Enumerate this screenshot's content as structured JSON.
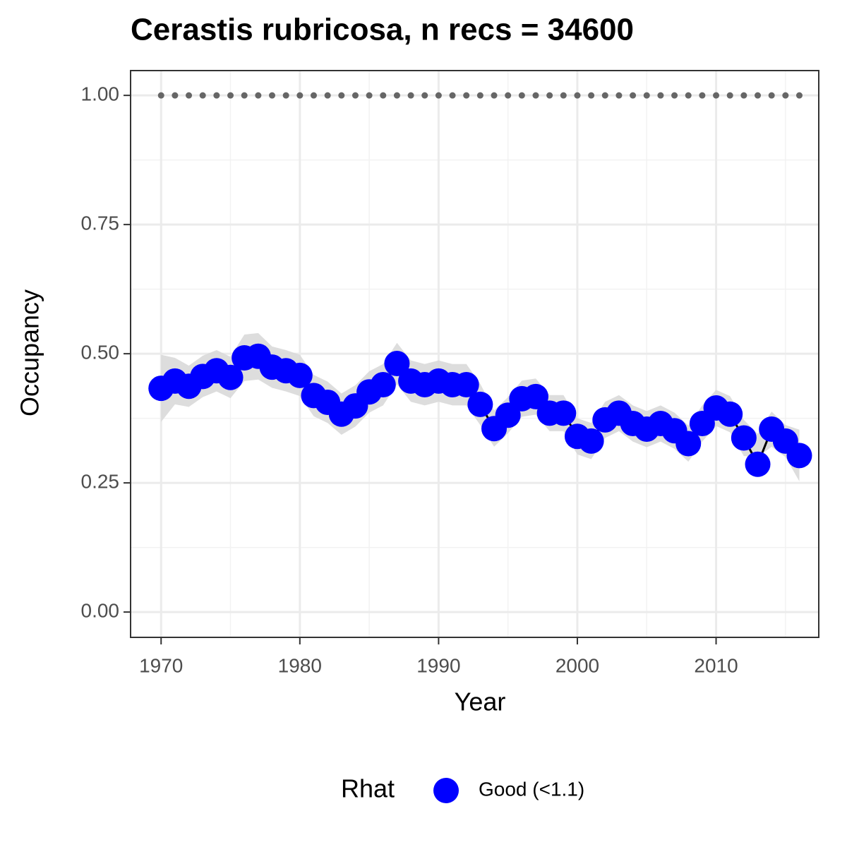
{
  "chart_data": {
    "type": "line",
    "title": "Cerastis rubricosa, n recs = 34600",
    "xlabel": "Year",
    "ylabel": "Occupancy",
    "legend_title": "Rhat",
    "legend": "bottom",
    "x": [
      1970,
      1971,
      1972,
      1973,
      1974,
      1975,
      1976,
      1977,
      1978,
      1979,
      1980,
      1981,
      1982,
      1983,
      1984,
      1985,
      1986,
      1987,
      1988,
      1989,
      1990,
      1991,
      1992,
      1993,
      1994,
      1995,
      1996,
      1997,
      1998,
      1999,
      2000,
      2001,
      2002,
      2003,
      2004,
      2005,
      2006,
      2007,
      2008,
      2009,
      2010,
      2011,
      2012,
      2013,
      2014,
      2015,
      2016
    ],
    "series": [
      {
        "name": "Good (<1.1)",
        "color": "#0000ff",
        "line_color": "#000000",
        "values": [
          0.433,
          0.447,
          0.437,
          0.456,
          0.467,
          0.454,
          0.492,
          0.495,
          0.474,
          0.467,
          0.458,
          0.419,
          0.406,
          0.383,
          0.399,
          0.426,
          0.44,
          0.481,
          0.447,
          0.44,
          0.447,
          0.44,
          0.44,
          0.402,
          0.355,
          0.381,
          0.413,
          0.417,
          0.385,
          0.385,
          0.34,
          0.331,
          0.372,
          0.385,
          0.365,
          0.354,
          0.365,
          0.351,
          0.326,
          0.365,
          0.395,
          0.383,
          0.337,
          0.286,
          0.354,
          0.331,
          0.303
        ],
        "lower": [
          0.368,
          0.402,
          0.397,
          0.416,
          0.427,
          0.414,
          0.447,
          0.45,
          0.434,
          0.427,
          0.418,
          0.379,
          0.366,
          0.343,
          0.359,
          0.386,
          0.4,
          0.441,
          0.407,
          0.4,
          0.407,
          0.4,
          0.4,
          0.362,
          0.32,
          0.346,
          0.378,
          0.382,
          0.35,
          0.35,
          0.305,
          0.296,
          0.337,
          0.35,
          0.33,
          0.319,
          0.33,
          0.316,
          0.291,
          0.33,
          0.36,
          0.348,
          0.302,
          0.3,
          0.32,
          0.3,
          0.253
        ],
        "upper": [
          0.498,
          0.492,
          0.477,
          0.496,
          0.507,
          0.494,
          0.537,
          0.54,
          0.514,
          0.507,
          0.498,
          0.459,
          0.446,
          0.423,
          0.439,
          0.466,
          0.48,
          0.521,
          0.487,
          0.48,
          0.487,
          0.48,
          0.48,
          0.442,
          0.39,
          0.416,
          0.448,
          0.452,
          0.42,
          0.42,
          0.375,
          0.366,
          0.407,
          0.42,
          0.4,
          0.389,
          0.4,
          0.386,
          0.361,
          0.4,
          0.43,
          0.418,
          0.372,
          0.345,
          0.388,
          0.362,
          0.353
        ],
        "ribbon_color": "#d9d9d9"
      }
    ],
    "reference": {
      "color": "#666666",
      "values": [
        1,
        1,
        1,
        1,
        1,
        1,
        1,
        1,
        1,
        1,
        1,
        1,
        1,
        1,
        1,
        1,
        1,
        1,
        1,
        1,
        1,
        1,
        1,
        1,
        1,
        1,
        1,
        1,
        1,
        1,
        1,
        1,
        1,
        1,
        1,
        1,
        1,
        1,
        1,
        1,
        1,
        1,
        1,
        1,
        1,
        1,
        1
      ]
    },
    "xlim": [
      1967.8,
      2017.4
    ],
    "xticks": [
      1970,
      1980,
      1990,
      2000,
      2010
    ],
    "xminor": [
      1975,
      1985,
      1995,
      2005,
      2015
    ],
    "ylim": [
      -0.049,
      1.048
    ],
    "yticks": [
      {
        "value": 0,
        "label": "0.00"
      },
      {
        "value": 0.25,
        "label": "0.25"
      },
      {
        "value": 0.5,
        "label": "0.50"
      },
      {
        "value": 0.75,
        "label": "0.75"
      },
      {
        "value": 1,
        "label": "1.00"
      }
    ],
    "yminor": [
      0.125,
      0.375,
      0.625,
      0.875
    ],
    "grid": true
  }
}
